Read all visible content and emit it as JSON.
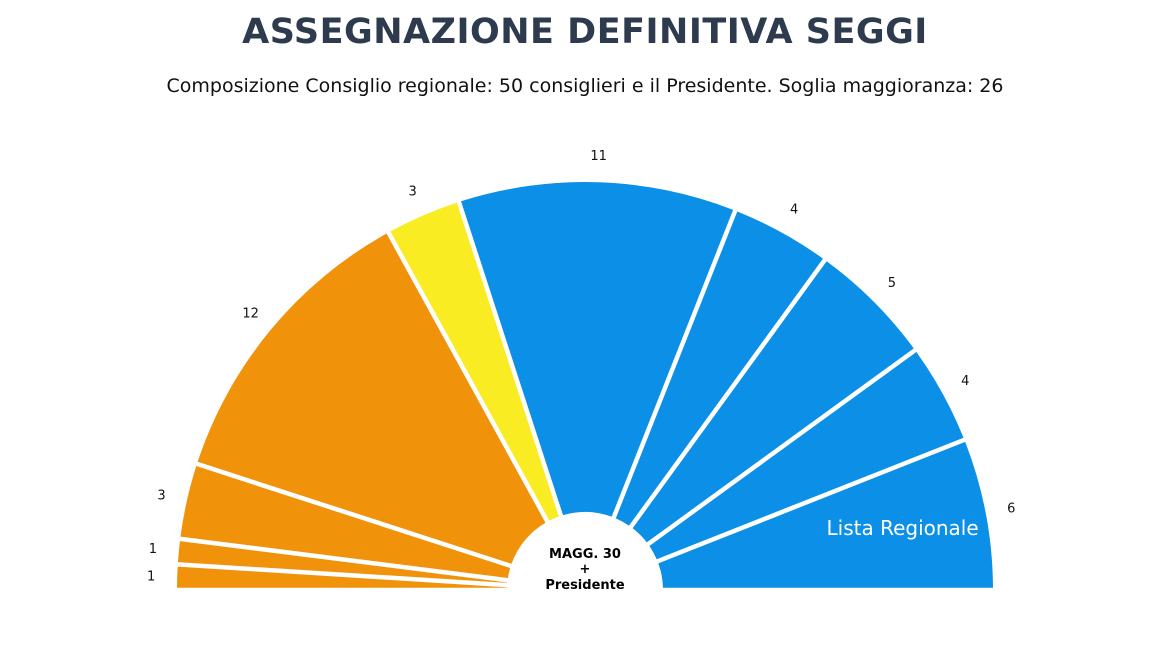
{
  "header": {
    "title": "ASSEGNAZIONE DEFINITIVA SEGGI",
    "subtitle": "Composizione Consiglio regionale: 50 consiglieri e il Presidente. Soglia maggioranza: 26"
  },
  "center": {
    "line1": "MAGG. 30",
    "line2": "+",
    "line3": "Presidente"
  },
  "chart_data": {
    "type": "pie",
    "title": "ASSEGNAZIONE DEFINITIVA SEGGI",
    "subtitle": "Composizione Consiglio regionale: 50 consiglieri e il Presidente. Soglia maggioranza: 26",
    "shape": "semicircle",
    "total": 50,
    "values": [
      1,
      1,
      3,
      12,
      3,
      11,
      4,
      5,
      4,
      6
    ],
    "colors": [
      "#f0920a",
      "#f0920a",
      "#f0920a",
      "#f0920a",
      "#f9ec23",
      "#0c8fe6",
      "#0c8fe6",
      "#0c8fe6",
      "#0c8fe6",
      "#0c8fe6"
    ],
    "annotations": [
      {
        "slice_index": 9,
        "text": "Lista Regionale"
      }
    ],
    "center_annotation": [
      "MAGG. 30",
      "+",
      "Presidente"
    ]
  }
}
